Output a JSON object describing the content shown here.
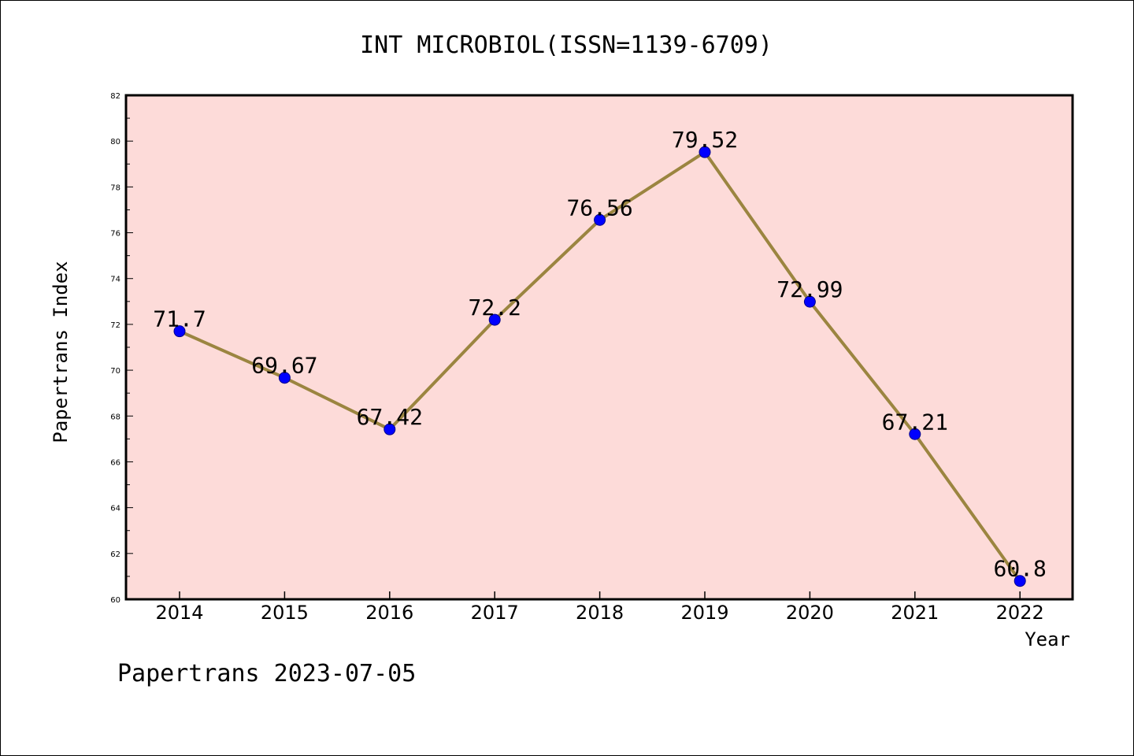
{
  "chart_data": {
    "type": "line",
    "title": "INT MICROBIOL(ISSN=1139-6709)",
    "xlabel": "Year",
    "ylabel": "Papertrans Index",
    "categories": [
      "2014",
      "2015",
      "2016",
      "2017",
      "2018",
      "2019",
      "2020",
      "2021",
      "2022"
    ],
    "series": [
      {
        "values": [
          71.7,
          69.67,
          67.42,
          72.2,
          76.56,
          79.52,
          72.99,
          67.21,
          60.8
        ],
        "data_labels": [
          "71.7",
          "69.67",
          "67.42",
          "72.2",
          "76.56",
          "79.52",
          "72.99",
          "67.21",
          "60.8"
        ]
      }
    ],
    "ylim": [
      60,
      82
    ],
    "y_ticks": [
      60,
      62,
      64,
      66,
      68,
      70,
      72,
      74,
      76,
      78,
      80,
      82
    ],
    "grid": false,
    "legend": "none",
    "colors": {
      "plot_background": "#fddbd9",
      "line": "#9b8540",
      "marker": "#0000ff",
      "marker_edge": "#00008b",
      "axis": "#000000"
    }
  },
  "footer": "Papertrans 2023-07-05"
}
